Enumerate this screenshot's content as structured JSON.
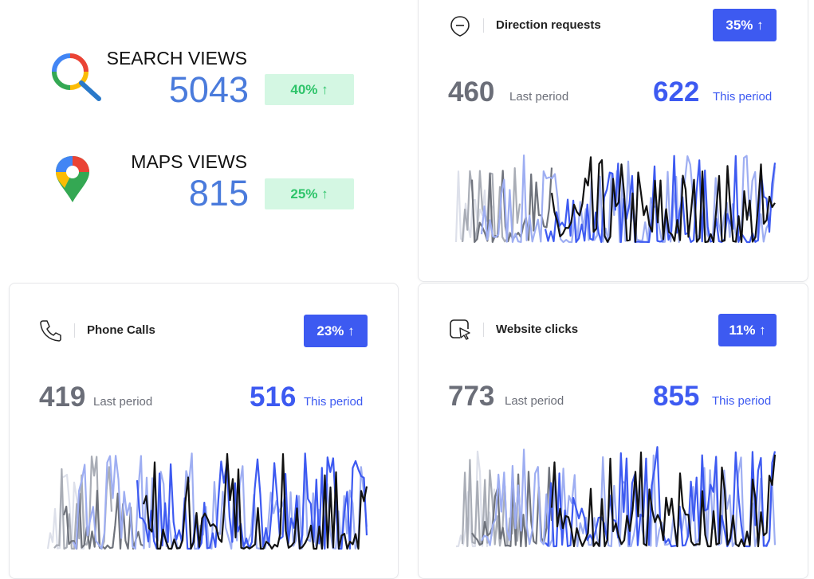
{
  "summary": [
    {
      "title": "SEARCH VIEWS",
      "value": 5043,
      "change": "40% ↑"
    },
    {
      "title": "MAPS VIEWS",
      "value": 815,
      "change": "25% ↑"
    }
  ],
  "cards": [
    {
      "title": "Direction requests",
      "change": "35% ↑",
      "last_value": 460,
      "last_label": "Last period",
      "this_value": 622,
      "this_label": "This period"
    },
    {
      "title": "Phone Calls",
      "change": "23% ↑",
      "last_value": 419,
      "last_label": "Last period",
      "this_value": 516,
      "this_label": "This period"
    },
    {
      "title": "Website clicks",
      "change": "11% ↑",
      "last_value": 773,
      "last_label": "Last period",
      "this_value": 855,
      "this_label": "This period"
    }
  ]
}
